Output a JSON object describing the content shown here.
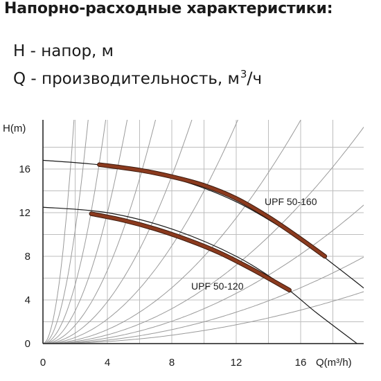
{
  "heading": "Напорно-расходные характеристики:",
  "legend": {
    "h_text": "H - напор, м",
    "q_text": "Q - производительность, м",
    "q_unit_top": "3",
    "q_unit_bottom": "ч"
  },
  "chart_data": {
    "type": "line",
    "ylabel": "H(m)",
    "xlabel": "Q(m³/h)",
    "xlim": [
      0,
      20
    ],
    "ylim": [
      0,
      20
    ],
    "x_ticks": [
      "0",
      "4",
      "8",
      "12",
      "16"
    ],
    "y_ticks": [
      "0",
      "4",
      "8",
      "12",
      "16"
    ],
    "grid": true,
    "series": [
      {
        "name": "UPF 50-160",
        "color": "#8b3a1e",
        "x": [
          3.5,
          6,
          8,
          10,
          12,
          14,
          16,
          17.5
        ],
        "y": [
          16.4,
          15.9,
          15.3,
          14.5,
          13.3,
          11.6,
          9.6,
          8.0
        ]
      },
      {
        "name": "UPF 50-120",
        "color": "#8b3a1e",
        "x": [
          3,
          5,
          7,
          9,
          11,
          13,
          15.3
        ],
        "y": [
          11.9,
          11.3,
          10.5,
          9.5,
          8.3,
          6.8,
          4.9
        ]
      }
    ],
    "max_curves": [
      {
        "x": [
          0,
          4,
          8,
          12,
          16,
          18,
          20
        ],
        "y": [
          16.8,
          16.3,
          15.2,
          13.0,
          9.5,
          7.3,
          5.0
        ]
      },
      {
        "x": [
          0,
          4,
          8,
          12,
          15,
          17,
          19.5
        ],
        "y": [
          12.5,
          12.0,
          10.5,
          8.0,
          5.2,
          2.8,
          0.0
        ]
      }
    ],
    "system_curve_coefficients": [
      5.5,
      2.6,
      1.35,
      0.75,
      0.42,
      0.24,
      0.14,
      0.08,
      0.05,
      0.032,
      0.02,
      0.012
    ]
  }
}
